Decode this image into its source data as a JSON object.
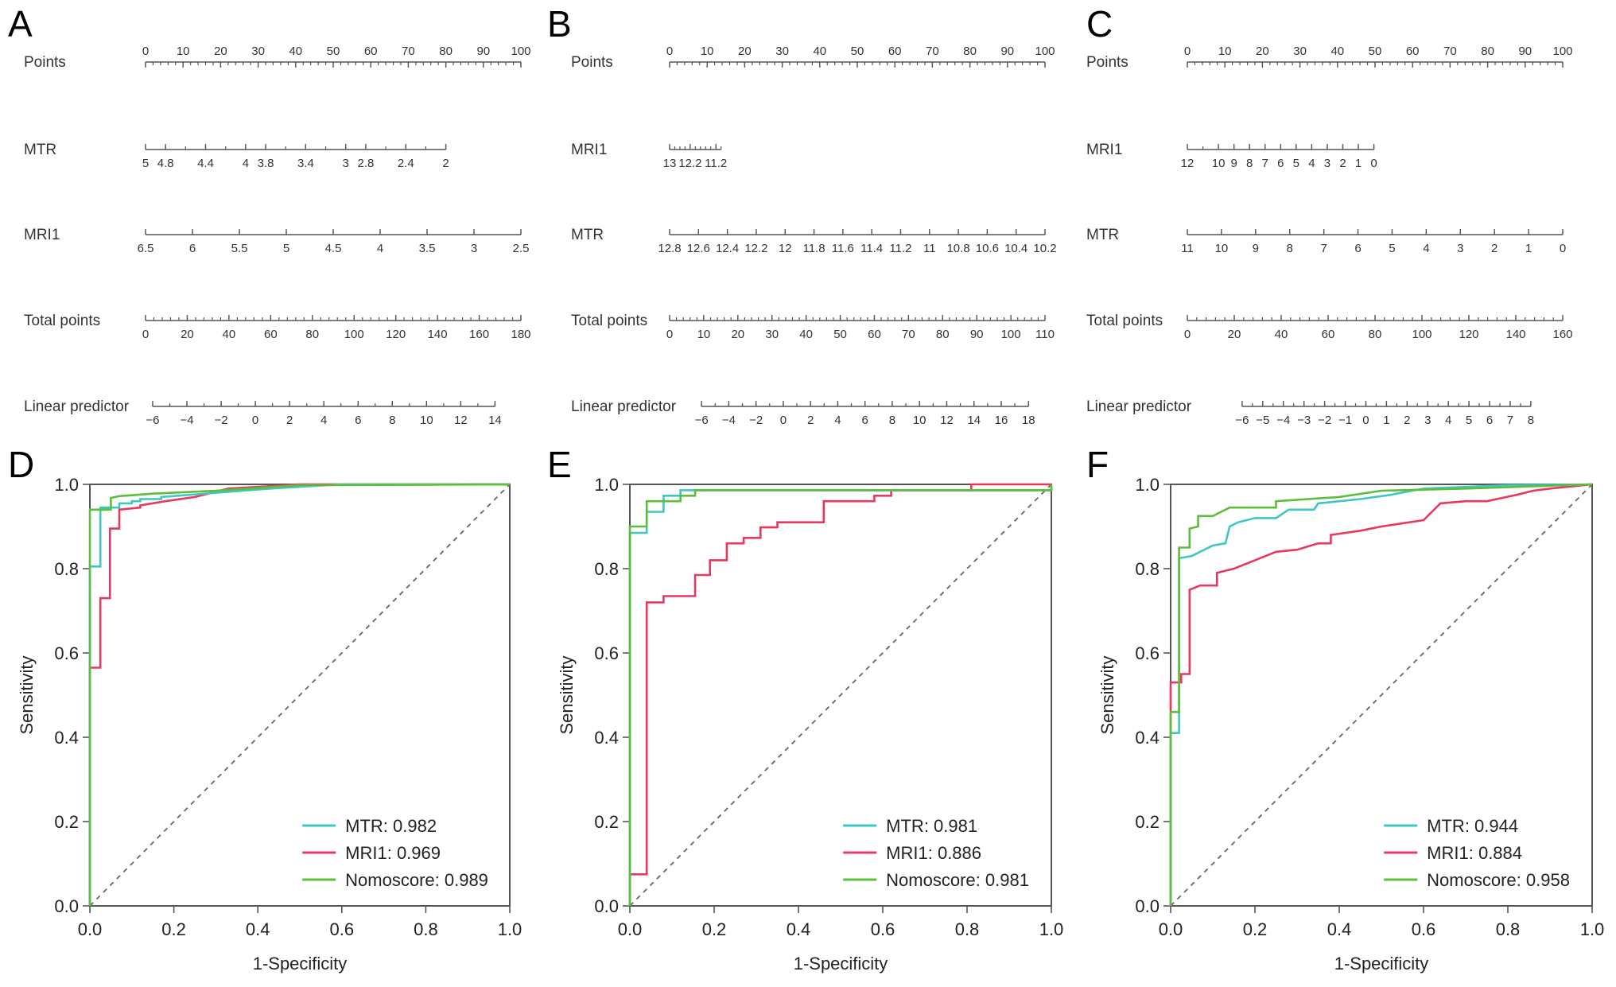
{
  "colors": {
    "MTR": "#3fc7c1",
    "MRI1": "#e8385f",
    "Nomoscore": "#5dbd3c",
    "axis": "#555555",
    "diagonal": "#666666"
  },
  "chart_data": [
    {
      "panel": "A",
      "type": "nomogram",
      "axes": [
        {
          "label": "Points",
          "min": 0,
          "max": 100,
          "points_span": [
            0,
            100
          ],
          "minor_step": 2,
          "labels_above": true,
          "labels": [
            "0",
            "10",
            "20",
            "30",
            "40",
            "50",
            "60",
            "70",
            "80",
            "90",
            "100"
          ]
        },
        {
          "label": "MTR",
          "min": 5,
          "max": 2,
          "points_span": [
            0,
            80
          ],
          "minor_step": 0.2,
          "labels": [
            "5",
            "4.8",
            "4.4",
            "4",
            "3.8",
            "3.4",
            "3",
            "2.8",
            "2.4",
            "2"
          ]
        },
        {
          "label": "MRI1",
          "min": 6.5,
          "max": 2.5,
          "points_span": [
            0,
            100
          ],
          "minor_step": 0.5,
          "labels": [
            "6.5",
            "6",
            "5.5",
            "5",
            "4.5",
            "4",
            "3.5",
            "3",
            "2.5"
          ]
        },
        {
          "label": "Total points",
          "min": 0,
          "max": 180,
          "points_span": [
            0,
            100
          ],
          "minor_step": 4,
          "labels": [
            "0",
            "20",
            "40",
            "60",
            "80",
            "100",
            "120",
            "140",
            "160",
            "180"
          ]
        },
        {
          "label": "Linear predictor",
          "min": -6,
          "max": 14,
          "points_span": [
            1.9,
            93.1
          ],
          "minor_step": 1,
          "labels": [
            "−6",
            "−4",
            "−2",
            "0",
            "2",
            "4",
            "6",
            "8",
            "10",
            "12",
            "14"
          ]
        }
      ]
    },
    {
      "panel": "B",
      "type": "nomogram",
      "axes": [
        {
          "label": "Points",
          "min": 0,
          "max": 100,
          "points_span": [
            0,
            100
          ],
          "minor_step": 2,
          "labels_above": true,
          "labels": [
            "0",
            "10",
            "20",
            "30",
            "40",
            "50",
            "60",
            "70",
            "80",
            "90",
            "100"
          ]
        },
        {
          "label": "MRI1",
          "min": 13,
          "max": 11,
          "points_span": [
            0,
            13.7
          ],
          "minor_step": 0.2,
          "labels": [
            "13",
            "12.2",
            "11.2"
          ]
        },
        {
          "label": "MTR",
          "min": 12.8,
          "max": 10.2,
          "points_span": [
            0,
            100
          ],
          "minor_step": 0.2,
          "labels": [
            "12.8",
            "12.6",
            "12.4",
            "12.2",
            "12",
            "11.8",
            "11.6",
            "11.4",
            "11.2",
            "11",
            "10.8",
            "10.6",
            "10.4",
            "10.2"
          ]
        },
        {
          "label": "Total points",
          "min": 0,
          "max": 110,
          "points_span": [
            0,
            100
          ],
          "minor_step": 2,
          "labels": [
            "0",
            "10",
            "20",
            "30",
            "40",
            "50",
            "60",
            "70",
            "80",
            "90",
            "100",
            "110"
          ]
        },
        {
          "label": "Linear predictor",
          "min": -6,
          "max": 18,
          "points_span": [
            8.5,
            95.6
          ],
          "minor_step": 1,
          "labels": [
            "−6",
            "−4",
            "−2",
            "0",
            "2",
            "4",
            "6",
            "8",
            "10",
            "12",
            "14",
            "16",
            "18"
          ]
        }
      ]
    },
    {
      "panel": "C",
      "type": "nomogram",
      "axes": [
        {
          "label": "Points",
          "min": 0,
          "max": 100,
          "points_span": [
            0,
            100
          ],
          "minor_step": 2,
          "labels_above": true,
          "labels": [
            "0",
            "10",
            "20",
            "30",
            "40",
            "50",
            "60",
            "70",
            "80",
            "90",
            "100"
          ]
        },
        {
          "label": "MRI1",
          "min": 12,
          "max": 0,
          "points_span": [
            0,
            49.7
          ],
          "minor_step": 1,
          "labels": [
            "12",
            "10",
            "9",
            "8",
            "7",
            "6",
            "5",
            "4",
            "3",
            "2",
            "1",
            "0"
          ]
        },
        {
          "label": "MTR",
          "min": 11,
          "max": 0,
          "points_span": [
            0,
            100
          ],
          "minor_step": 1,
          "labels": [
            "11",
            "10",
            "9",
            "8",
            "7",
            "6",
            "5",
            "4",
            "3",
            "2",
            "1",
            "0"
          ]
        },
        {
          "label": "Total points",
          "min": 0,
          "max": 160,
          "points_span": [
            0,
            100
          ],
          "minor_step": 4,
          "labels": [
            "0",
            "20",
            "40",
            "60",
            "80",
            "100",
            "120",
            "140",
            "160"
          ]
        },
        {
          "label": "Linear predictor",
          "min": -6,
          "max": 8,
          "points_span": [
            14.6,
            91.5
          ],
          "minor_step": 0.5,
          "labels": [
            "−6",
            "−5",
            "−4",
            "−3",
            "−2",
            "−1",
            "0",
            "1",
            "2",
            "3",
            "4",
            "5",
            "6",
            "7",
            "8"
          ]
        }
      ]
    },
    {
      "panel": "D",
      "type": "line",
      "xlabel": "1-Specificity",
      "ylabel": "Sensitivity",
      "xlim": [
        0,
        1
      ],
      "ylim": [
        0,
        1
      ],
      "legend": "bottom-right",
      "xticks": [
        "0.0",
        "0.2",
        "0.4",
        "0.6",
        "0.8",
        "1.0"
      ],
      "yticks": [
        "0.0",
        "0.2",
        "0.4",
        "0.6",
        "0.8",
        "1.0"
      ],
      "series": [
        {
          "name": "MTR",
          "legend": "MTR: 0.982",
          "auc": 0.982,
          "points": [
            [
              0,
              0
            ],
            [
              0,
              0.805
            ],
            [
              0.025,
              0.805
            ],
            [
              0.025,
              0.945
            ],
            [
              0.07,
              0.945
            ],
            [
              0.07,
              0.955
            ],
            [
              0.1,
              0.955
            ],
            [
              0.1,
              0.96
            ],
            [
              0.12,
              0.96
            ],
            [
              0.12,
              0.965
            ],
            [
              0.17,
              0.965
            ],
            [
              0.17,
              0.97
            ],
            [
              0.3,
              0.98
            ],
            [
              0.43,
              0.99
            ],
            [
              0.6,
              1
            ],
            [
              1,
              1
            ]
          ]
        },
        {
          "name": "MRI1",
          "legend": "MRI1: 0.969",
          "auc": 0.969,
          "points": [
            [
              0,
              0
            ],
            [
              0,
              0.565
            ],
            [
              0.025,
              0.565
            ],
            [
              0.025,
              0.73
            ],
            [
              0.048,
              0.73
            ],
            [
              0.048,
              0.895
            ],
            [
              0.07,
              0.895
            ],
            [
              0.07,
              0.94
            ],
            [
              0.12,
              0.945
            ],
            [
              0.12,
              0.95
            ],
            [
              0.18,
              0.96
            ],
            [
              0.25,
              0.97
            ],
            [
              0.33,
              0.99
            ],
            [
              0.5,
              1
            ],
            [
              1,
              1
            ]
          ]
        },
        {
          "name": "Nomoscore",
          "legend": "Nomoscore: 0.989",
          "auc": 0.989,
          "points": [
            [
              0,
              0
            ],
            [
              0,
              0.94
            ],
            [
              0.05,
              0.94
            ],
            [
              0.05,
              0.968
            ],
            [
              0.07,
              0.972
            ],
            [
              0.15,
              0.978
            ],
            [
              0.3,
              0.985
            ],
            [
              0.5,
              0.998
            ],
            [
              1,
              1
            ]
          ]
        }
      ]
    },
    {
      "panel": "E",
      "type": "line",
      "xlabel": "1-Specificity",
      "ylabel": "Sensitivity",
      "xlim": [
        0,
        1
      ],
      "ylim": [
        0,
        1
      ],
      "legend": "bottom-right",
      "xticks": [
        "0.0",
        "0.2",
        "0.4",
        "0.6",
        "0.8",
        "1.0"
      ],
      "yticks": [
        "0.0",
        "0.2",
        "0.4",
        "0.6",
        "0.8",
        "1.0"
      ],
      "series": [
        {
          "name": "MTR",
          "legend": "MTR: 0.981",
          "auc": 0.981,
          "points": [
            [
              0,
              0
            ],
            [
              0,
              0.885
            ],
            [
              0.04,
              0.885
            ],
            [
              0.04,
              0.935
            ],
            [
              0.08,
              0.935
            ],
            [
              0.08,
              0.973
            ],
            [
              0.12,
              0.973
            ],
            [
              0.12,
              0.986
            ],
            [
              1,
              0.986
            ],
            [
              1,
              1
            ]
          ]
        },
        {
          "name": "MRI1",
          "legend": "MRI1: 0.886",
          "auc": 0.886,
          "points": [
            [
              0,
              0
            ],
            [
              0,
              0.075
            ],
            [
              0.04,
              0.075
            ],
            [
              0.04,
              0.72
            ],
            [
              0.08,
              0.72
            ],
            [
              0.08,
              0.735
            ],
            [
              0.155,
              0.735
            ],
            [
              0.155,
              0.785
            ],
            [
              0.19,
              0.785
            ],
            [
              0.19,
              0.82
            ],
            [
              0.23,
              0.82
            ],
            [
              0.23,
              0.86
            ],
            [
              0.27,
              0.86
            ],
            [
              0.27,
              0.873
            ],
            [
              0.31,
              0.873
            ],
            [
              0.31,
              0.898
            ],
            [
              0.35,
              0.898
            ],
            [
              0.35,
              0.91
            ],
            [
              0.46,
              0.91
            ],
            [
              0.46,
              0.96
            ],
            [
              0.58,
              0.96
            ],
            [
              0.58,
              0.973
            ],
            [
              0.62,
              0.973
            ],
            [
              0.62,
              0.986
            ],
            [
              0.81,
              0.986
            ],
            [
              0.81,
              1
            ],
            [
              1,
              1
            ]
          ]
        },
        {
          "name": "Nomoscore",
          "legend": "Nomoscore: 0.981",
          "auc": 0.981,
          "points": [
            [
              0,
              0
            ],
            [
              0,
              0.9
            ],
            [
              0.04,
              0.9
            ],
            [
              0.04,
              0.96
            ],
            [
              0.12,
              0.96
            ],
            [
              0.12,
              0.973
            ],
            [
              0.155,
              0.973
            ],
            [
              0.155,
              0.986
            ],
            [
              1,
              0.986
            ],
            [
              1,
              1
            ]
          ]
        }
      ]
    },
    {
      "panel": "F",
      "type": "line",
      "xlabel": "1-Specificity",
      "ylabel": "Sensitivity",
      "xlim": [
        0,
        1
      ],
      "ylim": [
        0,
        1
      ],
      "legend": "bottom-right",
      "xticks": [
        "0.0",
        "0.2",
        "0.4",
        "0.6",
        "0.8",
        "1.0"
      ],
      "yticks": [
        "0.0",
        "0.2",
        "0.4",
        "0.6",
        "0.8",
        "1.0"
      ],
      "series": [
        {
          "name": "MTR",
          "legend": "MTR: 0.944",
          "auc": 0.944,
          "points": [
            [
              0,
              0
            ],
            [
              0,
              0.41
            ],
            [
              0.02,
              0.41
            ],
            [
              0.02,
              0.825
            ],
            [
              0.05,
              0.83
            ],
            [
              0.07,
              0.84
            ],
            [
              0.1,
              0.855
            ],
            [
              0.13,
              0.86
            ],
            [
              0.14,
              0.9
            ],
            [
              0.16,
              0.91
            ],
            [
              0.2,
              0.92
            ],
            [
              0.25,
              0.92
            ],
            [
              0.28,
              0.94
            ],
            [
              0.34,
              0.94
            ],
            [
              0.35,
              0.955
            ],
            [
              0.45,
              0.965
            ],
            [
              0.52,
              0.975
            ],
            [
              0.6,
              0.99
            ],
            [
              0.8,
              0.998
            ],
            [
              1,
              1
            ]
          ]
        },
        {
          "name": "MRI1",
          "legend": "MRI1: 0.884",
          "auc": 0.884,
          "points": [
            [
              0,
              0
            ],
            [
              0,
              0.53
            ],
            [
              0.025,
              0.53
            ],
            [
              0.025,
              0.55
            ],
            [
              0.045,
              0.55
            ],
            [
              0.045,
              0.75
            ],
            [
              0.07,
              0.76
            ],
            [
              0.11,
              0.76
            ],
            [
              0.11,
              0.79
            ],
            [
              0.15,
              0.8
            ],
            [
              0.2,
              0.82
            ],
            [
              0.25,
              0.84
            ],
            [
              0.3,
              0.845
            ],
            [
              0.35,
              0.86
            ],
            [
              0.38,
              0.86
            ],
            [
              0.38,
              0.88
            ],
            [
              0.45,
              0.89
            ],
            [
              0.5,
              0.9
            ],
            [
              0.6,
              0.915
            ],
            [
              0.62,
              0.935
            ],
            [
              0.64,
              0.955
            ],
            [
              0.7,
              0.96
            ],
            [
              0.75,
              0.96
            ],
            [
              0.82,
              0.975
            ],
            [
              0.86,
              0.985
            ],
            [
              0.9,
              0.99
            ],
            [
              1,
              1
            ]
          ]
        },
        {
          "name": "Nomoscore",
          "legend": "Nomoscore: 0.958",
          "auc": 0.958,
          "points": [
            [
              0,
              0
            ],
            [
              0,
              0.46
            ],
            [
              0.02,
              0.46
            ],
            [
              0.02,
              0.85
            ],
            [
              0.045,
              0.85
            ],
            [
              0.045,
              0.895
            ],
            [
              0.065,
              0.9
            ],
            [
              0.065,
              0.925
            ],
            [
              0.1,
              0.925
            ],
            [
              0.14,
              0.945
            ],
            [
              0.25,
              0.945
            ],
            [
              0.25,
              0.96
            ],
            [
              0.4,
              0.97
            ],
            [
              0.5,
              0.985
            ],
            [
              0.7,
              0.99
            ],
            [
              1,
              1
            ]
          ]
        }
      ]
    }
  ]
}
